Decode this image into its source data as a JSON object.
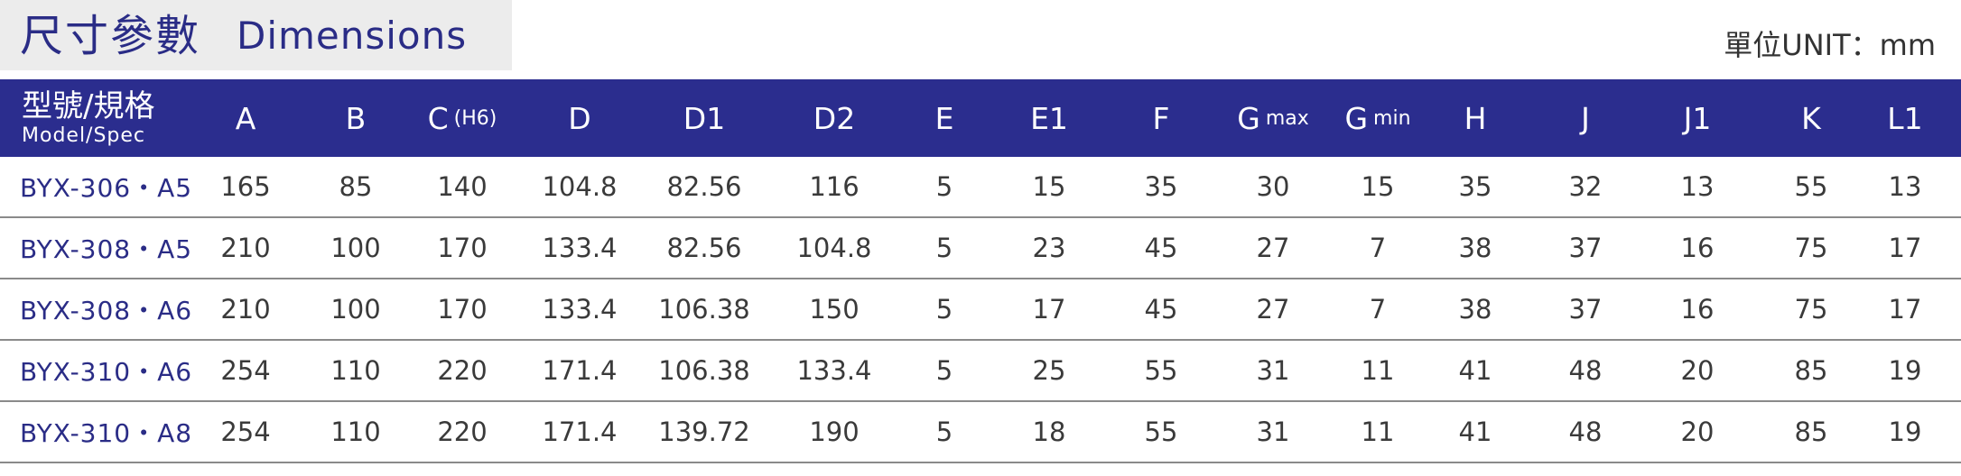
{
  "header": {
    "title_cn": "尺寸參數",
    "title_en": "Dimensions",
    "unit": "單位UNIT：mm"
  },
  "table": {
    "spec_header_cn": "型號/規格",
    "spec_header_en": "Model/Spec",
    "columns": [
      {
        "label": "A",
        "sub": ""
      },
      {
        "label": "B",
        "sub": ""
      },
      {
        "label": "C",
        "sub": "(H6)"
      },
      {
        "label": "D",
        "sub": ""
      },
      {
        "label": "D1",
        "sub": ""
      },
      {
        "label": "D2",
        "sub": ""
      },
      {
        "label": "E",
        "sub": ""
      },
      {
        "label": "E1",
        "sub": ""
      },
      {
        "label": "F",
        "sub": ""
      },
      {
        "label": "G",
        "sub": "max"
      },
      {
        "label": "G",
        "sub": "min"
      },
      {
        "label": "H",
        "sub": ""
      },
      {
        "label": "J",
        "sub": ""
      },
      {
        "label": "J1",
        "sub": ""
      },
      {
        "label": "K",
        "sub": ""
      },
      {
        "label": "L1",
        "sub": ""
      }
    ],
    "rows": [
      {
        "model": "BYX-306・A5",
        "values": [
          "165",
          "85",
          "140",
          "104.8",
          "82.56",
          "116",
          "5",
          "15",
          "35",
          "30",
          "15",
          "35",
          "32",
          "13",
          "55",
          "13"
        ]
      },
      {
        "model": "BYX-308・A5",
        "values": [
          "210",
          "100",
          "170",
          "133.4",
          "82.56",
          "104.8",
          "5",
          "23",
          "45",
          "27",
          "7",
          "38",
          "37",
          "16",
          "75",
          "17"
        ]
      },
      {
        "model": "BYX-308・A6",
        "values": [
          "210",
          "100",
          "170",
          "133.4",
          "106.38",
          "150",
          "5",
          "17",
          "45",
          "27",
          "7",
          "38",
          "37",
          "16",
          "75",
          "17"
        ]
      },
      {
        "model": "BYX-310・A6",
        "values": [
          "254",
          "110",
          "220",
          "171.4",
          "106.38",
          "133.4",
          "5",
          "25",
          "55",
          "31",
          "11",
          "41",
          "48",
          "20",
          "85",
          "19"
        ]
      },
      {
        "model": "BYX-310・A8",
        "values": [
          "254",
          "110",
          "220",
          "171.4",
          "139.72",
          "190",
          "5",
          "18",
          "55",
          "31",
          "11",
          "41",
          "48",
          "20",
          "85",
          "19"
        ]
      }
    ]
  }
}
